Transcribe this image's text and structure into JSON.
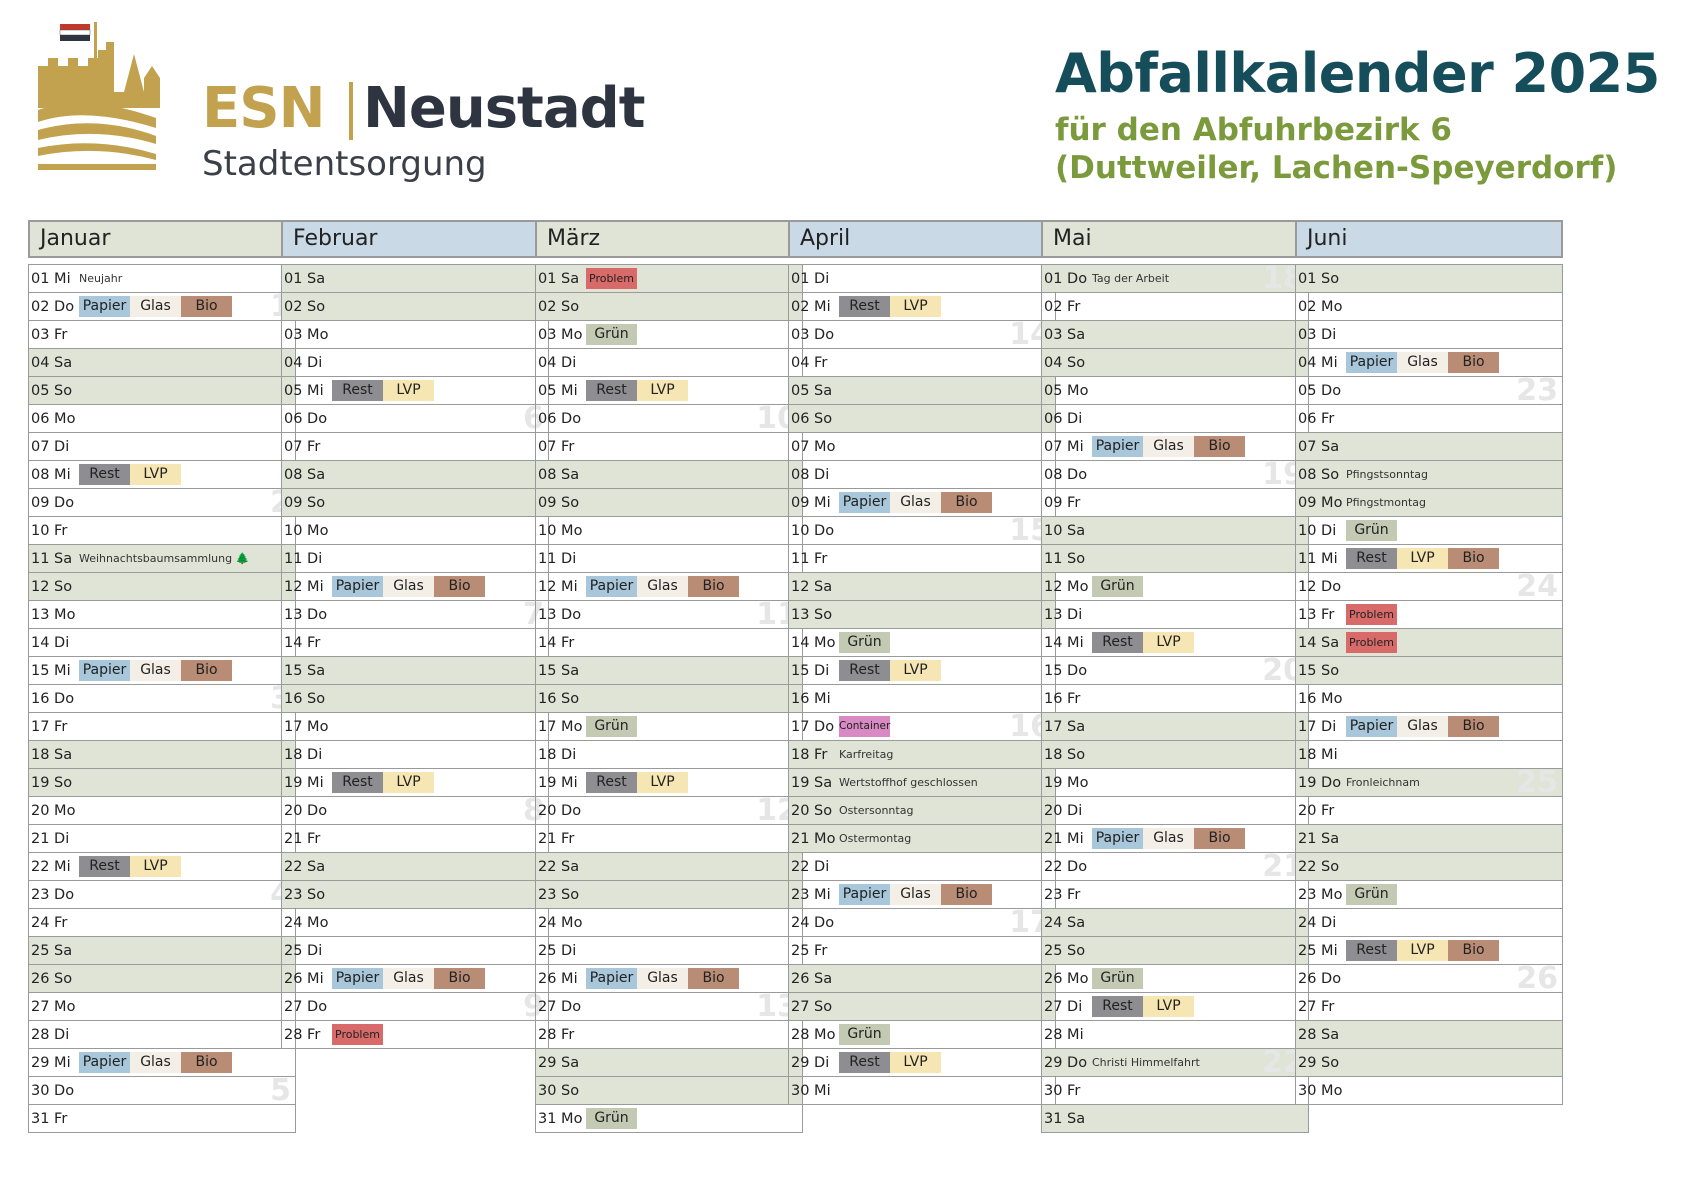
{
  "brand": {
    "esn": "ESN",
    "city": "Neustadt",
    "sub": "Stadtentsorgung"
  },
  "title": {
    "main": "Abfallkalender 2025",
    "line2": "für den Abfuhrbezirk 6",
    "line3": "(Duttweiler, Lachen-Speyerdorf)"
  },
  "colors": {
    "Papier": "#a8c7db",
    "Glas": "#f4efe6",
    "Bio": "#b98d75",
    "Rest": "#8e8d92",
    "LVP": "#f5e6b3",
    "Grün": "#c3c9b2",
    "Problem": "#d96a6a",
    "Container": "#d98ac4",
    "weekend": "#dfe4d7"
  },
  "months": [
    {
      "name": "Januar",
      "days": [
        {
          "l": "01 Mi",
          "note": "Neujahr"
        },
        {
          "l": "02 Do",
          "tags": [
            "Papier",
            "Glas",
            "Bio"
          ],
          "wk": "1"
        },
        {
          "l": "03 Fr"
        },
        {
          "l": "04 Sa",
          "we": true
        },
        {
          "l": "05 So",
          "we": true
        },
        {
          "l": "06 Mo"
        },
        {
          "l": "07 Di"
        },
        {
          "l": "08 Mi",
          "tags": [
            "Rest",
            "LVP"
          ]
        },
        {
          "l": "09 Do",
          "wk": "2"
        },
        {
          "l": "10 Fr"
        },
        {
          "l": "11 Sa",
          "we": true,
          "note": "Weihnachtsbaumsammlung 🌲"
        },
        {
          "l": "12 So",
          "we": true
        },
        {
          "l": "13 Mo"
        },
        {
          "l": "14 Di"
        },
        {
          "l": "15 Mi",
          "tags": [
            "Papier",
            "Glas",
            "Bio"
          ]
        },
        {
          "l": "16 Do",
          "wk": "3"
        },
        {
          "l": "17 Fr"
        },
        {
          "l": "18 Sa",
          "we": true
        },
        {
          "l": "19 So",
          "we": true
        },
        {
          "l": "20 Mo"
        },
        {
          "l": "21 Di"
        },
        {
          "l": "22 Mi",
          "tags": [
            "Rest",
            "LVP"
          ]
        },
        {
          "l": "23 Do",
          "wk": "4"
        },
        {
          "l": "24 Fr"
        },
        {
          "l": "25 Sa",
          "we": true
        },
        {
          "l": "26 So",
          "we": true
        },
        {
          "l": "27 Mo"
        },
        {
          "l": "28 Di"
        },
        {
          "l": "29 Mi",
          "tags": [
            "Papier",
            "Glas",
            "Bio"
          ]
        },
        {
          "l": "30 Do",
          "wk": "5"
        },
        {
          "l": "31 Fr"
        }
      ]
    },
    {
      "name": "Februar",
      "days": [
        {
          "l": "01 Sa",
          "we": true
        },
        {
          "l": "02 So",
          "we": true
        },
        {
          "l": "03 Mo"
        },
        {
          "l": "04 Di"
        },
        {
          "l": "05 Mi",
          "tags": [
            "Rest",
            "LVP"
          ]
        },
        {
          "l": "06 Do",
          "wk": "6"
        },
        {
          "l": "07 Fr"
        },
        {
          "l": "08 Sa",
          "we": true
        },
        {
          "l": "09 So",
          "we": true
        },
        {
          "l": "10 Mo"
        },
        {
          "l": "11 Di"
        },
        {
          "l": "12 Mi",
          "tags": [
            "Papier",
            "Glas",
            "Bio"
          ]
        },
        {
          "l": "13 Do",
          "wk": "7"
        },
        {
          "l": "14 Fr"
        },
        {
          "l": "15 Sa",
          "we": true
        },
        {
          "l": "16 So",
          "we": true
        },
        {
          "l": "17 Mo"
        },
        {
          "l": "18 Di"
        },
        {
          "l": "19 Mi",
          "tags": [
            "Rest",
            "LVP"
          ]
        },
        {
          "l": "20 Do",
          "wk": "8"
        },
        {
          "l": "21 Fr"
        },
        {
          "l": "22 Sa",
          "we": true
        },
        {
          "l": "23 So",
          "we": true
        },
        {
          "l": "24 Mo"
        },
        {
          "l": "25 Di"
        },
        {
          "l": "26 Mi",
          "tags": [
            "Papier",
            "Glas",
            "Bio"
          ]
        },
        {
          "l": "27 Do",
          "wk": "9"
        },
        {
          "l": "28 Fr",
          "tags": [
            "Problem"
          ]
        }
      ]
    },
    {
      "name": "März",
      "days": [
        {
          "l": "01 Sa",
          "we": true,
          "tags": [
            "Problem"
          ]
        },
        {
          "l": "02 So",
          "we": true
        },
        {
          "l": "03 Mo",
          "tags": [
            "Grün"
          ]
        },
        {
          "l": "04 Di"
        },
        {
          "l": "05 Mi",
          "tags": [
            "Rest",
            "LVP"
          ]
        },
        {
          "l": "06 Do",
          "wk": "10"
        },
        {
          "l": "07 Fr"
        },
        {
          "l": "08 Sa",
          "we": true
        },
        {
          "l": "09 So",
          "we": true
        },
        {
          "l": "10 Mo"
        },
        {
          "l": "11 Di"
        },
        {
          "l": "12 Mi",
          "tags": [
            "Papier",
            "Glas",
            "Bio"
          ]
        },
        {
          "l": "13 Do",
          "wk": "11"
        },
        {
          "l": "14 Fr"
        },
        {
          "l": "15 Sa",
          "we": true
        },
        {
          "l": "16 So",
          "we": true
        },
        {
          "l": "17 Mo",
          "tags": [
            "Grün"
          ]
        },
        {
          "l": "18 Di"
        },
        {
          "l": "19 Mi",
          "tags": [
            "Rest",
            "LVP"
          ]
        },
        {
          "l": "20 Do",
          "wk": "12"
        },
        {
          "l": "21 Fr"
        },
        {
          "l": "22 Sa",
          "we": true
        },
        {
          "l": "23 So",
          "we": true
        },
        {
          "l": "24 Mo"
        },
        {
          "l": "25 Di"
        },
        {
          "l": "26 Mi",
          "tags": [
            "Papier",
            "Glas",
            "Bio"
          ]
        },
        {
          "l": "27 Do",
          "wk": "13"
        },
        {
          "l": "28 Fr"
        },
        {
          "l": "29 Sa",
          "we": true
        },
        {
          "l": "30 So",
          "we": true
        },
        {
          "l": "31 Mo",
          "tags": [
            "Grün"
          ]
        }
      ]
    },
    {
      "name": "April",
      "days": [
        {
          "l": "01 Di"
        },
        {
          "l": "02 Mi",
          "tags": [
            "Rest",
            "LVP"
          ]
        },
        {
          "l": "03 Do",
          "wk": "14"
        },
        {
          "l": "04 Fr"
        },
        {
          "l": "05 Sa",
          "we": true
        },
        {
          "l": "06 So",
          "we": true
        },
        {
          "l": "07 Mo"
        },
        {
          "l": "08 Di"
        },
        {
          "l": "09 Mi",
          "tags": [
            "Papier",
            "Glas",
            "Bio"
          ]
        },
        {
          "l": "10 Do",
          "wk": "15"
        },
        {
          "l": "11 Fr"
        },
        {
          "l": "12 Sa",
          "we": true
        },
        {
          "l": "13 So",
          "we": true
        },
        {
          "l": "14 Mo",
          "tags": [
            "Grün"
          ]
        },
        {
          "l": "15 Di",
          "tags": [
            "Rest",
            "LVP"
          ]
        },
        {
          "l": "16 Mi"
        },
        {
          "l": "17 Do",
          "tags": [
            "Container"
          ],
          "wk": "16"
        },
        {
          "l": "18 Fr",
          "we": true,
          "note": "Karfreitag"
        },
        {
          "l": "19 Sa",
          "we": true,
          "note": "Wertstoffhof geschlossen"
        },
        {
          "l": "20 So",
          "we": true,
          "note": "Ostersonntag"
        },
        {
          "l": "21 Mo",
          "we": true,
          "note": "Ostermontag"
        },
        {
          "l": "22 Di"
        },
        {
          "l": "23 Mi",
          "tags": [
            "Papier",
            "Glas",
            "Bio"
          ]
        },
        {
          "l": "24 Do",
          "wk": "17"
        },
        {
          "l": "25 Fr"
        },
        {
          "l": "26 Sa",
          "we": true
        },
        {
          "l": "27 So",
          "we": true
        },
        {
          "l": "28 Mo",
          "tags": [
            "Grün"
          ]
        },
        {
          "l": "29 Di",
          "tags": [
            "Rest",
            "LVP"
          ]
        },
        {
          "l": "30 Mi"
        }
      ]
    },
    {
      "name": "Mai",
      "days": [
        {
          "l": "01 Do",
          "we": true,
          "note": "Tag der Arbeit",
          "wk": "18"
        },
        {
          "l": "02 Fr"
        },
        {
          "l": "03 Sa",
          "we": true
        },
        {
          "l": "04 So",
          "we": true
        },
        {
          "l": "05 Mo"
        },
        {
          "l": "06 Di"
        },
        {
          "l": "07 Mi",
          "tags": [
            "Papier",
            "Glas",
            "Bio"
          ]
        },
        {
          "l": "08 Do",
          "wk": "19"
        },
        {
          "l": "09 Fr"
        },
        {
          "l": "10 Sa",
          "we": true
        },
        {
          "l": "11 So",
          "we": true
        },
        {
          "l": "12 Mo",
          "tags": [
            "Grün"
          ]
        },
        {
          "l": "13 Di"
        },
        {
          "l": "14 Mi",
          "tags": [
            "Rest",
            "LVP"
          ]
        },
        {
          "l": "15 Do",
          "wk": "20"
        },
        {
          "l": "16 Fr"
        },
        {
          "l": "17 Sa",
          "we": true
        },
        {
          "l": "18 So",
          "we": true
        },
        {
          "l": "19 Mo"
        },
        {
          "l": "20 Di"
        },
        {
          "l": "21 Mi",
          "tags": [
            "Papier",
            "Glas",
            "Bio"
          ]
        },
        {
          "l": "22 Do",
          "wk": "21"
        },
        {
          "l": "23 Fr"
        },
        {
          "l": "24 Sa",
          "we": true
        },
        {
          "l": "25 So",
          "we": true
        },
        {
          "l": "26 Mo",
          "tags": [
            "Grün"
          ]
        },
        {
          "l": "27 Di",
          "tags": [
            "Rest",
            "LVP"
          ]
        },
        {
          "l": "28 Mi"
        },
        {
          "l": "29 Do",
          "we": true,
          "note": "Christi Himmelfahrt",
          "wk": "22"
        },
        {
          "l": "30 Fr"
        },
        {
          "l": "31 Sa",
          "we": true
        }
      ]
    },
    {
      "name": "Juni",
      "days": [
        {
          "l": "01 So",
          "we": true
        },
        {
          "l": "02 Mo"
        },
        {
          "l": "03 Di"
        },
        {
          "l": "04 Mi",
          "tags": [
            "Papier",
            "Glas",
            "Bio"
          ]
        },
        {
          "l": "05 Do",
          "wk": "23"
        },
        {
          "l": "06 Fr"
        },
        {
          "l": "07 Sa",
          "we": true
        },
        {
          "l": "08 So",
          "we": true,
          "note": "Pfingstsonntag"
        },
        {
          "l": "09 Mo",
          "we": true,
          "note": "Pfingstmontag"
        },
        {
          "l": "10 Di",
          "tags": [
            "Grün"
          ]
        },
        {
          "l": "11 Mi",
          "tags": [
            "Rest",
            "LVP",
            "Bio"
          ]
        },
        {
          "l": "12 Do",
          "wk": "24"
        },
        {
          "l": "13 Fr",
          "tags": [
            "Problem"
          ]
        },
        {
          "l": "14 Sa",
          "we": true,
          "tags": [
            "Problem"
          ]
        },
        {
          "l": "15 So",
          "we": true
        },
        {
          "l": "16 Mo"
        },
        {
          "l": "17 Di",
          "tags": [
            "Papier",
            "Glas",
            "Bio"
          ]
        },
        {
          "l": "18 Mi"
        },
        {
          "l": "19 Do",
          "we": true,
          "note": "Fronleichnam",
          "wk": "25"
        },
        {
          "l": "20 Fr"
        },
        {
          "l": "21 Sa",
          "we": true
        },
        {
          "l": "22 So",
          "we": true
        },
        {
          "l": "23 Mo",
          "tags": [
            "Grün"
          ]
        },
        {
          "l": "24 Di"
        },
        {
          "l": "25 Mi",
          "tags": [
            "Rest",
            "LVP",
            "Bio"
          ]
        },
        {
          "l": "26 Do",
          "wk": "26"
        },
        {
          "l": "27 Fr"
        },
        {
          "l": "28 Sa",
          "we": true
        },
        {
          "l": "29 So",
          "we": true
        },
        {
          "l": "30 Mo"
        }
      ]
    }
  ]
}
